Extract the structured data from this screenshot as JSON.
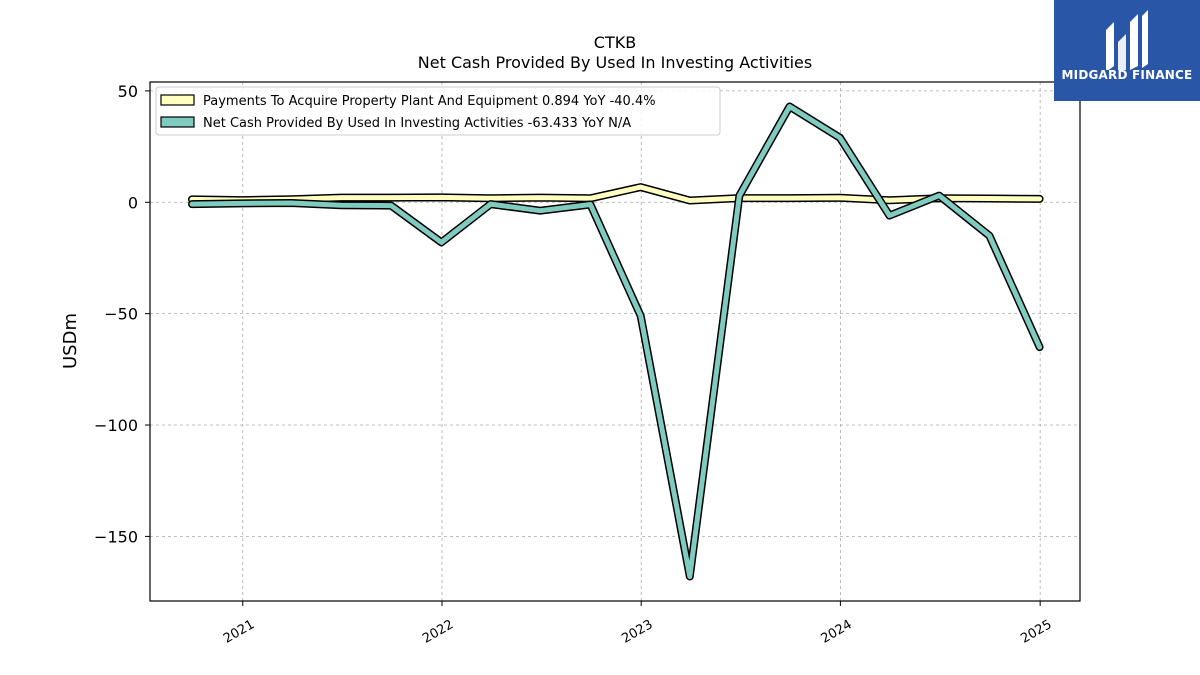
{
  "brand": {
    "name": "MIDGARD FINANCE",
    "bg_color": "#2a56a8",
    "icon": "midgard-logo-icon"
  },
  "chart_data": {
    "type": "line",
    "title": "CTKB",
    "subtitle": "Net Cash Provided By Used In Investing Activities",
    "xlabel": "",
    "ylabel": "USDm",
    "x_ticks": [
      "2021",
      "2022",
      "2023",
      "2024",
      "2025"
    ],
    "y_ticks": [
      50,
      0,
      -50,
      -100,
      -150
    ],
    "y_tick_labels": [
      "50",
      "0",
      "−50",
      "−100",
      "−150"
    ],
    "xlim": [
      "2020-07-15",
      "2025-03-15"
    ],
    "ylim": [
      -179,
      54
    ],
    "grid": true,
    "legend_position": "top-left",
    "x": [
      "2020-09-30",
      "2020-12-31",
      "2021-03-31",
      "2021-06-30",
      "2021-09-30",
      "2021-12-31",
      "2022-03-31",
      "2022-06-30",
      "2022-09-30",
      "2022-12-31",
      "2023-03-31",
      "2023-06-30",
      "2023-09-30",
      "2023-12-31",
      "2024-03-31",
      "2024-06-30",
      "2024-09-30",
      "2024-12-31"
    ],
    "series": [
      {
        "name": "Payments To Acquire Property Plant And Equipment  0.894 YoY -40.4%",
        "color": "#ffffbf",
        "values": [
          1.3,
          1.0,
          1.4,
          2.1,
          2.1,
          2.2,
          1.8,
          2.1,
          1.8,
          6.8,
          0.8,
          1.9,
          1.9,
          2.0,
          0.9,
          1.8,
          1.7,
          1.5
        ]
      },
      {
        "name": "Net Cash Provided By Used In Investing Activities  -63.433 YoY N/A",
        "color": "#80cbc0",
        "values": [
          -0.8,
          -0.5,
          -0.3,
          -1.3,
          -1.5,
          -18.0,
          -0.8,
          -3.8,
          -1.0,
          -51.0,
          -168.0,
          3.0,
          43.0,
          29.0,
          -6.0,
          3.0,
          -15.0,
          -65.0
        ]
      }
    ]
  }
}
